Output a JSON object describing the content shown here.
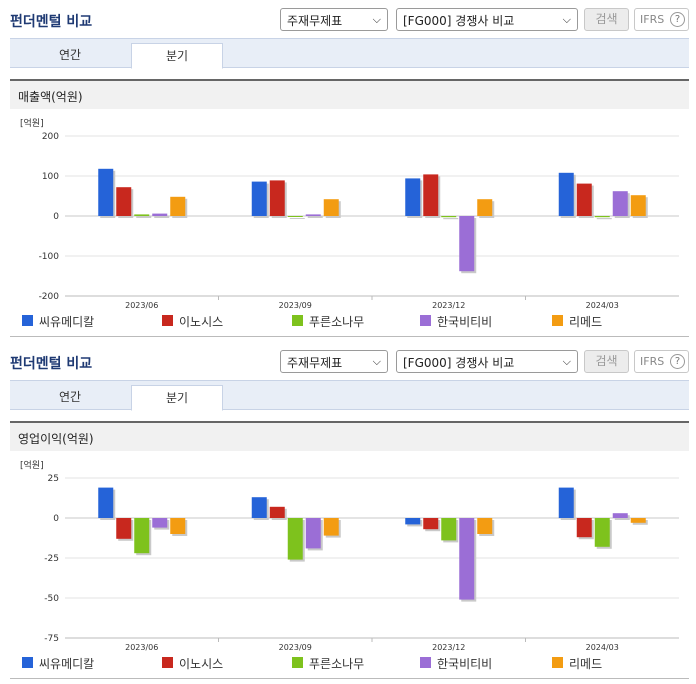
{
  "panels": [
    {
      "header": {
        "title": "펀더멘털 비교",
        "select1": "주재무제표",
        "select2": "[FG000] 경쟁사 비교",
        "search_label": "검색",
        "ifrs_label": "IFRS",
        "help_label": "?"
      },
      "tabs": [
        {
          "label": "연간"
        },
        {
          "label": "분기"
        }
      ],
      "chart_title": "매출액(억원)",
      "chart_data": {
        "type": "bar",
        "unit_label": "[억원]",
        "categories": [
          "2023/06",
          "2023/09",
          "2023/12",
          "2024/03"
        ],
        "ylim": [
          -200,
          200
        ],
        "yticks": [
          200,
          100,
          0,
          -100,
          -200
        ],
        "ytick_labels": [
          "200",
          "100",
          "0",
          "-100",
          "-200"
        ],
        "grid": true,
        "legend_position": "bottom",
        "series": [
          {
            "name": "씨유메디칼",
            "color": "#2563d8",
            "values": [
              118,
              86,
              94,
              108
            ]
          },
          {
            "name": "이노시스",
            "color": "#c8281e",
            "values": [
              72,
              89,
              104,
              81
            ]
          },
          {
            "name": "푸른소나무",
            "color": "#7ec21d",
            "values": [
              4,
              -2,
              -3,
              -3
            ]
          },
          {
            "name": "한국비티비",
            "color": "#9b6ed6",
            "values": [
              6,
              4,
              -138,
              62
            ]
          },
          {
            "name": "리메드",
            "color": "#f39c12",
            "values": [
              48,
              42,
              42,
              52
            ]
          }
        ]
      }
    },
    {
      "header": {
        "title": "펀더멘털 비교",
        "select1": "주재무제표",
        "select2": "[FG000] 경쟁사 비교",
        "search_label": "검색",
        "ifrs_label": "IFRS",
        "help_label": "?"
      },
      "tabs": [
        {
          "label": "연간"
        },
        {
          "label": "분기"
        }
      ],
      "chart_title": "영업이익(억원)",
      "chart_data": {
        "type": "bar",
        "unit_label": "[억원]",
        "categories": [
          "2023/06",
          "2023/09",
          "2023/12",
          "2024/03"
        ],
        "ylim": [
          -75,
          25
        ],
        "yticks": [
          25,
          0,
          -25,
          -50,
          -75
        ],
        "ytick_labels": [
          "25",
          "0",
          "-25",
          "-50",
          "-75"
        ],
        "grid": true,
        "legend_position": "bottom",
        "series": [
          {
            "name": "씨유메디칼",
            "color": "#2563d8",
            "values": [
              19,
              13,
              -4,
              19
            ]
          },
          {
            "name": "이노시스",
            "color": "#c8281e",
            "values": [
              -13,
              7,
              -7,
              -12
            ]
          },
          {
            "name": "푸른소나무",
            "color": "#7ec21d",
            "values": [
              -22,
              -26,
              -14,
              -18
            ]
          },
          {
            "name": "한국비티비",
            "color": "#9b6ed6",
            "values": [
              -6,
              -19,
              -51,
              3
            ]
          },
          {
            "name": "리메드",
            "color": "#f39c12",
            "values": [
              -10,
              -11,
              -10,
              -3
            ]
          }
        ]
      }
    }
  ]
}
